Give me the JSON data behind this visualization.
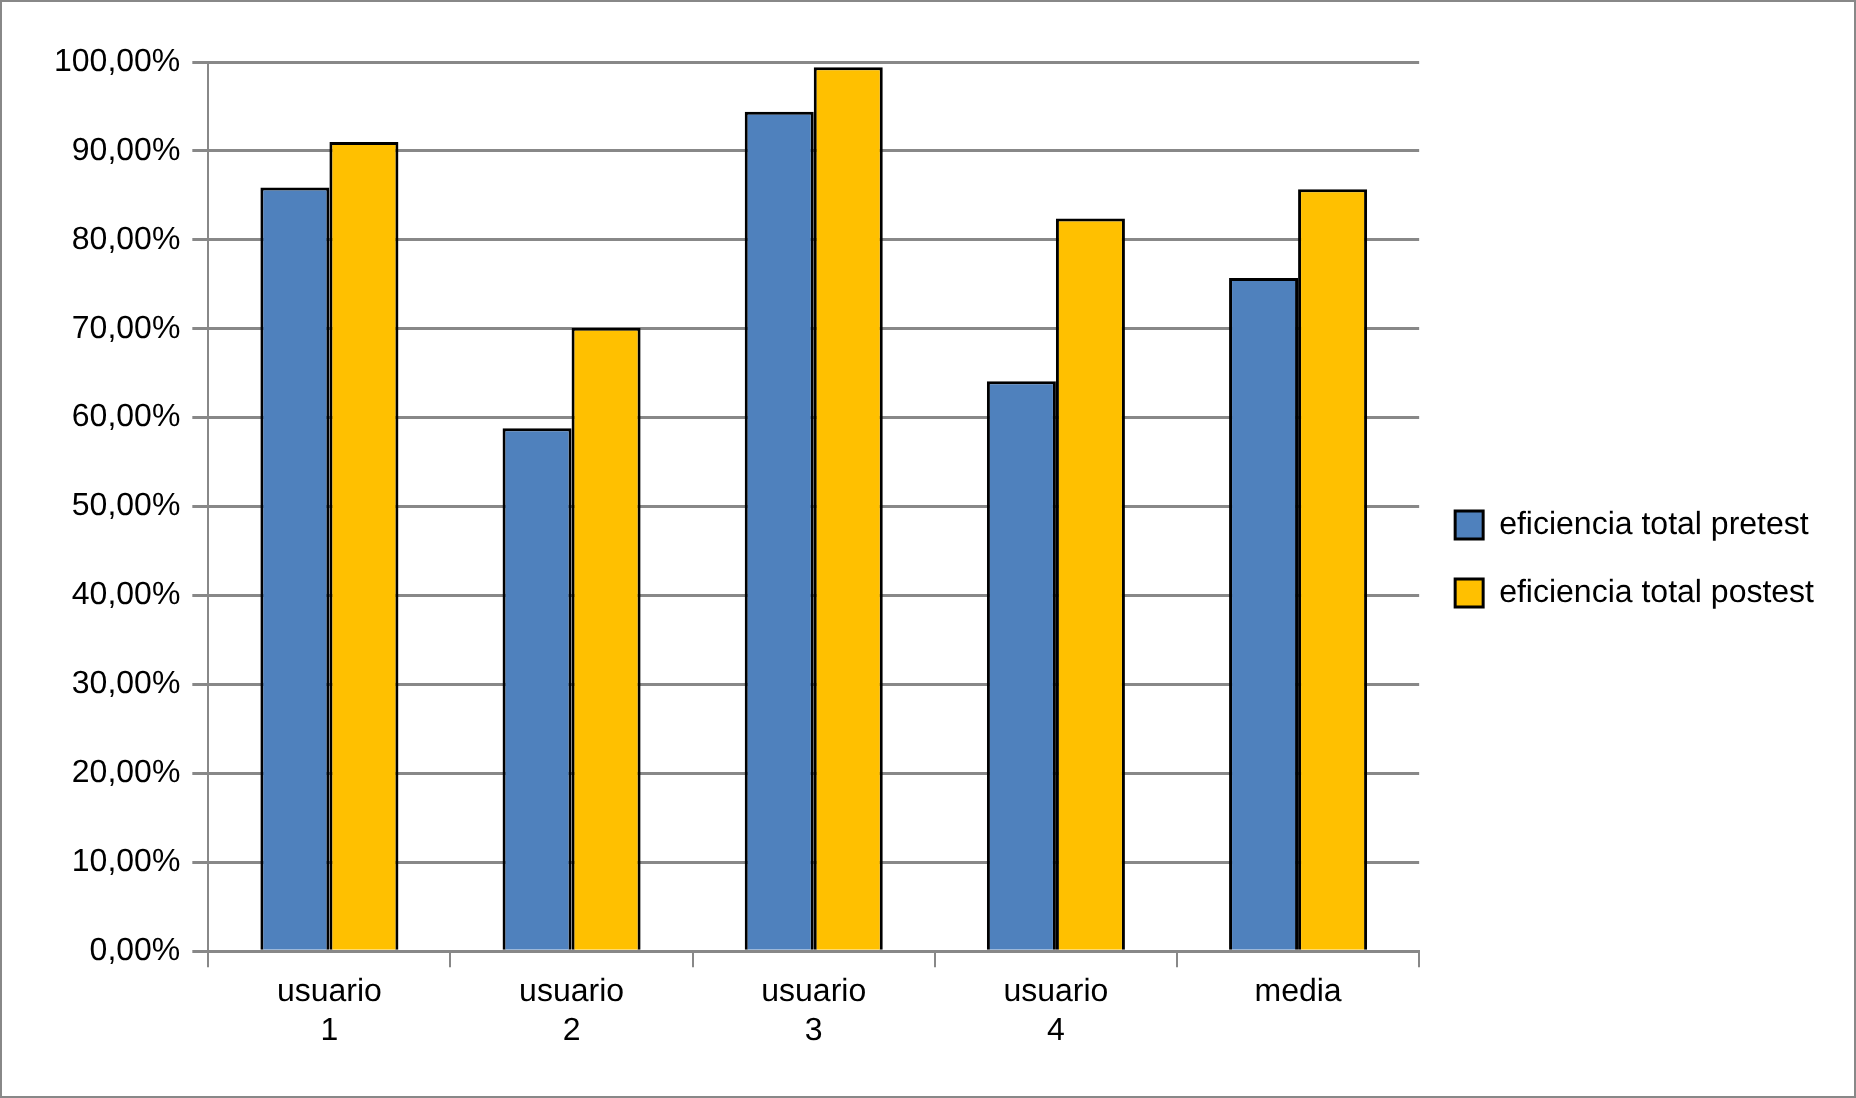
{
  "chart_data": {
    "type": "bar",
    "categories": [
      "usuario 1",
      "usuario 2",
      "usuario 3",
      "usuario 4",
      "media"
    ],
    "series": [
      {
        "name": "eficiencia total pretest",
        "color": "#4f81bd",
        "values": [
          85.9,
          58.8,
          94.4,
          64.1,
          75.7
        ]
      },
      {
        "name": "eficiencia total postest",
        "color": "#ffc000",
        "values": [
          91.0,
          70.1,
          99.4,
          82.4,
          85.7
        ]
      }
    ],
    "ylim": [
      0,
      100
    ],
    "yticks": [
      {
        "value": 0,
        "label": "0,00%"
      },
      {
        "value": 10,
        "label": "10,00%"
      },
      {
        "value": 20,
        "label": "20,00%"
      },
      {
        "value": 30,
        "label": "30,00%"
      },
      {
        "value": 40,
        "label": "40,00%"
      },
      {
        "value": 50,
        "label": "50,00%"
      },
      {
        "value": 60,
        "label": "60,00%"
      },
      {
        "value": 70,
        "label": "70,00%"
      },
      {
        "value": 80,
        "label": "80,00%"
      },
      {
        "value": 90,
        "label": "90,00%"
      },
      {
        "value": 100,
        "label": "100,00%"
      }
    ],
    "grid": "y",
    "legend": "right"
  }
}
